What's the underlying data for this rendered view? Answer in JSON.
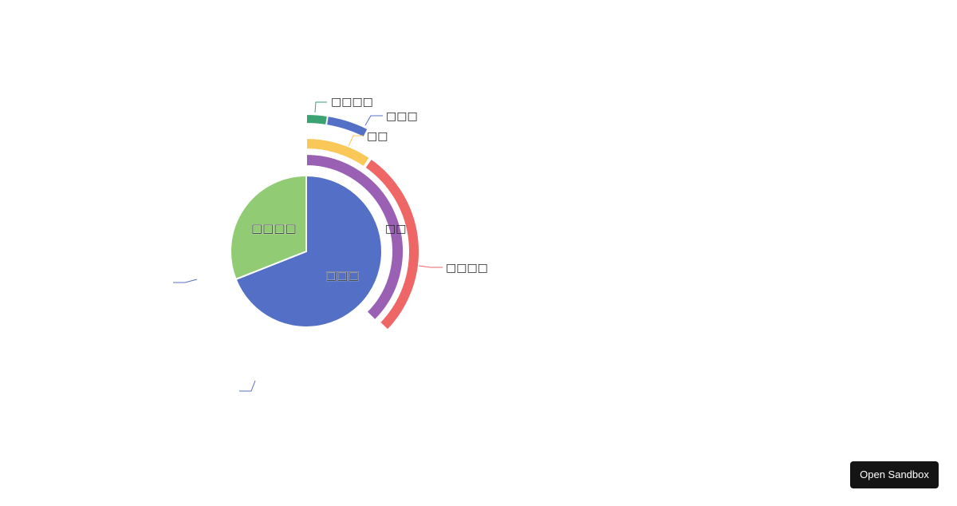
{
  "chart_data": {
    "type": "pie",
    "title": "",
    "series": [
      {
        "ring": "inner",
        "slices": [
          {
            "label": "□□□",
            "value": 69,
            "color": "#5470c6"
          },
          {
            "label": "□□□□",
            "value": 31,
            "color": "#91cc75"
          }
        ]
      },
      {
        "ring": "outer",
        "slices": [
          {
            "label": "□□□",
            "value": 5.5,
            "color": "#5470c6"
          },
          {
            "label": "□□□□",
            "value": 2.5,
            "color": "#3ba272"
          },
          {
            "label": "□□",
            "value": 9.5,
            "color": "#fac858"
          },
          {
            "label": "□□",
            "value": 37.5,
            "color": "#9a60b4"
          },
          {
            "label": "□□□□",
            "value": 27.5,
            "color": "#ee6666"
          }
        ]
      }
    ]
  },
  "toolbar": {
    "open_sandbox_label": "Open Sandbox"
  }
}
